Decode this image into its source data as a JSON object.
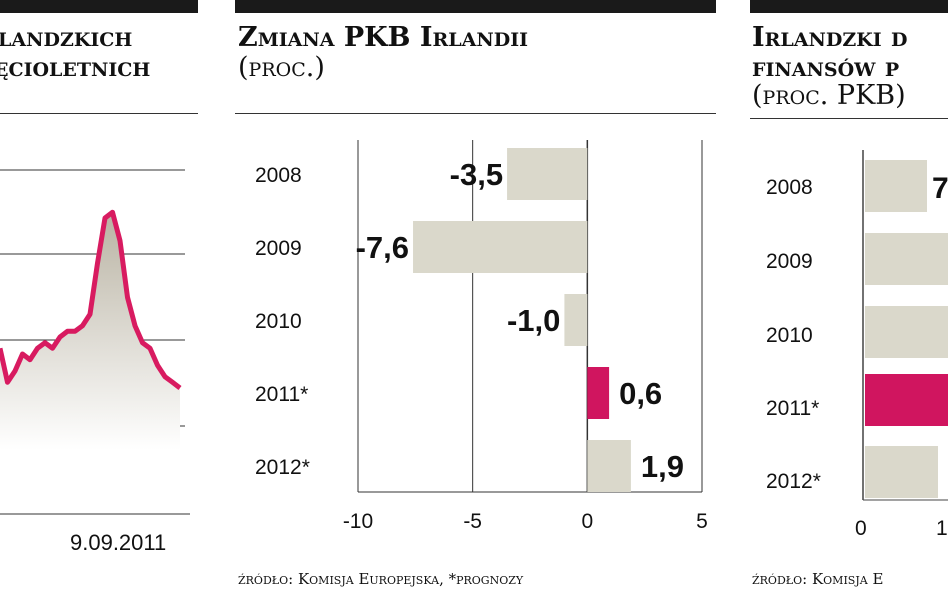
{
  "left_panel": {
    "title_line1": "landzkich",
    "title_line2": "ęcioletnich",
    "date": "9.09.2011",
    "line_color": "#d81b60",
    "fill_color": "#c9c4b6"
  },
  "middle_panel": {
    "title": "Zmiana PKB Irlandii",
    "subtitle": "(proc.)",
    "source": "źródło: Komisja Europejska, *prognozy"
  },
  "right_panel": {
    "title_line1": "Irlandzki d",
    "title_line2": "finansów p",
    "subtitle": "(proc. PKB)",
    "source": "źródło: Komisja E",
    "categories": [
      "2008",
      "2009",
      "2010",
      "2011*",
      "2012*"
    ],
    "visible_labels": [
      "7"
    ],
    "x_ticks": [
      "0",
      "1"
    ]
  },
  "chart_data": [
    {
      "type": "line",
      "series": [
        {
          "values": [
            6.5,
            5.9,
            6.1,
            6.4,
            6.3,
            6.5,
            6.6,
            6.5,
            6.7,
            6.8,
            6.8,
            6.9,
            7.1,
            8.0,
            8.8,
            8.9,
            8.4,
            7.4,
            6.9,
            6.6,
            6.5,
            6.2,
            6.0,
            5.9,
            5.8
          ]
        }
      ],
      "x_end_label": "9.09.2011"
    },
    {
      "type": "bar",
      "orientation": "horizontal",
      "title": "Zmiana PKB Irlandii",
      "subtitle": "(proc.)",
      "categories": [
        "2008",
        "2009",
        "2010",
        "2011*",
        "2012*"
      ],
      "values": [
        -3.5,
        -7.6,
        -1.0,
        0.6,
        1.9
      ],
      "value_labels": [
        "-3,5",
        "-7,6",
        "-1,0",
        "0,6",
        "1,9"
      ],
      "highlight_index": 3,
      "xlim": [
        -10,
        5
      ],
      "x_ticks": [
        -10,
        -5,
        0,
        5
      ],
      "x_tick_labels": [
        "-10",
        "-5",
        "0",
        "5"
      ],
      "colors": {
        "default": "#dad8cb",
        "highlight": "#d0155f"
      },
      "grid": true
    }
  ]
}
